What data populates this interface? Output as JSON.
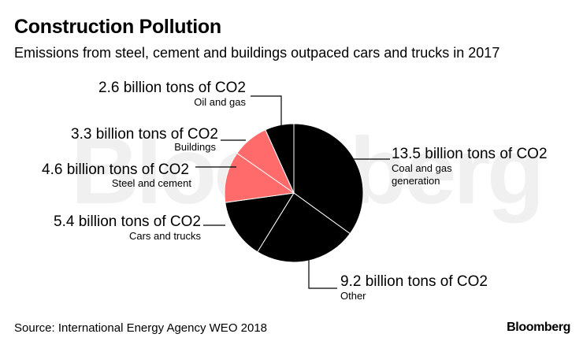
{
  "title": "Construction Pollution",
  "subtitle": "Emissions from steel, cement and buildings outpaced cars and trucks in 2017",
  "source": "Source: International Energy Agency WEO 2018",
  "brand": "Bloomberg",
  "watermark": "Bloomberg",
  "colors": {
    "dark": "#000000",
    "highlight": "#ff6b6b",
    "leader": "#000000",
    "slice_stroke": "#ffffff"
  },
  "chart_data": {
    "type": "pie",
    "title": "Construction Pollution",
    "subtitle": "Emissions from steel, cement and buildings outpaced cars and trucks in 2017",
    "unit": "billion tons of CO2",
    "start_angle_deg": 0,
    "direction": "clockwise",
    "slices": [
      {
        "category": "Coal and gas generation",
        "value": 13.5,
        "value_label": "13.5 billion tons of CO2",
        "name_lines": [
          "Coal and gas",
          "generation"
        ],
        "highlight": false
      },
      {
        "category": "Other",
        "value": 9.2,
        "value_label": "9.2 billion tons of CO2",
        "name_lines": [
          "Other"
        ],
        "highlight": false
      },
      {
        "category": "Cars and trucks",
        "value": 5.4,
        "value_label": "5.4 billion tons of CO2",
        "name_lines": [
          "Cars and trucks"
        ],
        "highlight": false
      },
      {
        "category": "Steel and cement",
        "value": 4.6,
        "value_label": "4.6 billion tons of CO2",
        "name_lines": [
          "Steel and cement"
        ],
        "highlight": true
      },
      {
        "category": "Buildings",
        "value": 3.3,
        "value_label": "3.3 billion tons of CO2",
        "name_lines": [
          "Buildings"
        ],
        "highlight": true
      },
      {
        "category": "Oil and gas",
        "value": 2.6,
        "value_label": "2.6 billion tons of CO2",
        "name_lines": [
          "Oil and gas"
        ],
        "highlight": false
      }
    ]
  }
}
